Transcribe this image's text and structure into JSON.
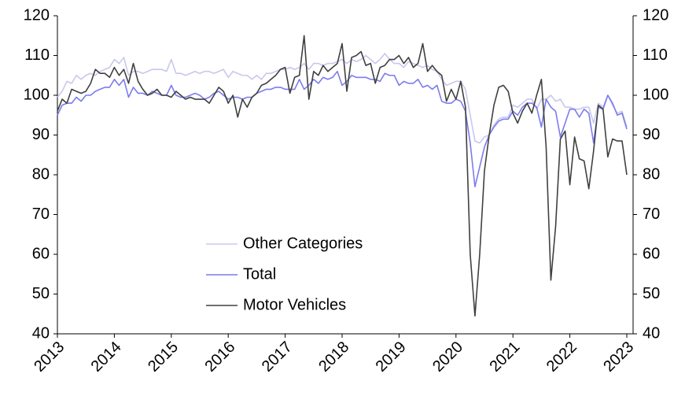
{
  "chart_data": {
    "type": "line",
    "categories": [
      "2013",
      null,
      null,
      null,
      null,
      null,
      null,
      null,
      null,
      null,
      null,
      null,
      "2014",
      null,
      null,
      null,
      null,
      null,
      null,
      null,
      null,
      null,
      null,
      null,
      "2015",
      null,
      null,
      null,
      null,
      null,
      null,
      null,
      null,
      null,
      null,
      null,
      "2016",
      null,
      null,
      null,
      null,
      null,
      null,
      null,
      null,
      null,
      null,
      null,
      "2017",
      null,
      null,
      null,
      null,
      null,
      null,
      null,
      null,
      null,
      null,
      null,
      "2018",
      null,
      null,
      null,
      null,
      null,
      null,
      null,
      null,
      null,
      null,
      null,
      "2019",
      null,
      null,
      null,
      null,
      null,
      null,
      null,
      null,
      null,
      null,
      null,
      "2020",
      null,
      null,
      null,
      null,
      null,
      null,
      null,
      null,
      null,
      null,
      null,
      "2021",
      null,
      null,
      null,
      null,
      null,
      null,
      null,
      null,
      null,
      null,
      null,
      "2022",
      null,
      null,
      null,
      null,
      null,
      null,
      null,
      null,
      null,
      null,
      null,
      "2023"
    ],
    "series": [
      {
        "name": "Other Categories",
        "color": "#c8c8ee",
        "values": [
          99.5,
          101,
          103.5,
          103,
          105,
          104,
          105,
          105.5,
          105,
          106,
          106.5,
          107,
          109,
          108,
          109.5,
          105,
          106,
          106,
          105.5,
          106,
          106.5,
          106.5,
          106.5,
          106,
          109,
          105.5,
          105.5,
          105,
          105.5,
          106,
          105.5,
          106,
          106,
          105.5,
          106,
          106.5,
          104.5,
          106,
          105.5,
          105,
          105,
          104,
          105,
          104,
          105.5,
          105.5,
          106,
          106.5,
          106.5,
          107,
          106.5,
          107,
          108,
          106.5,
          108,
          108,
          107.5,
          108,
          108,
          108.5,
          109,
          108,
          109,
          108.5,
          109,
          110,
          109,
          108,
          109,
          110.5,
          109,
          108,
          108,
          107,
          108.5,
          108,
          107.5,
          107,
          107.5,
          106.5,
          106,
          104,
          102.5,
          103,
          103.5,
          103.5,
          101.5,
          95,
          88.5,
          88,
          89.5,
          90,
          92.5,
          94,
          94.5,
          94.5,
          97.5,
          97,
          98,
          99,
          99,
          96.5,
          99,
          99,
          100,
          98.5,
          99,
          97,
          97,
          96.5,
          96.5,
          97,
          97,
          93,
          98,
          97,
          100,
          97.5,
          95.5,
          96,
          92
        ]
      },
      {
        "name": "Total",
        "color": "#7c7cee",
        "values": [
          95,
          97.5,
          98,
          98,
          99.5,
          98.5,
          100,
          100,
          101,
          101.5,
          102,
          102,
          104,
          102.5,
          104,
          99.5,
          102,
          100.5,
          100.5,
          100,
          101,
          100.5,
          100,
          100,
          102.5,
          100,
          99.5,
          99.5,
          100,
          100.5,
          100,
          99,
          99.5,
          100.5,
          101,
          100,
          99,
          99.5,
          99.5,
          99,
          99.5,
          99.5,
          100.5,
          101,
          101.5,
          101.5,
          102,
          102,
          101.5,
          101.5,
          101.5,
          104,
          101.5,
          102.5,
          104,
          103,
          104.5,
          104,
          104.5,
          106,
          102.5,
          103.5,
          105,
          104.5,
          104.5,
          104.5,
          104,
          104,
          103.5,
          105.5,
          105,
          105,
          102.5,
          103.5,
          103,
          103,
          104,
          102,
          102.5,
          101.5,
          102.5,
          98.5,
          98,
          98,
          99,
          98.5,
          96,
          88,
          77,
          82,
          87,
          90,
          92,
          93.5,
          94,
          94,
          96,
          95,
          97,
          98,
          98,
          97,
          92,
          99,
          97,
          96,
          89.5,
          93,
          96.5,
          96.5,
          94.5,
          96.5,
          95.5,
          88,
          97,
          96.5,
          100,
          98,
          95,
          95.5,
          91.5
        ]
      },
      {
        "name": "Motor Vehicles",
        "color": "#404040",
        "values": [
          96,
          99,
          98,
          101.5,
          101,
          100.5,
          101,
          103,
          106.5,
          105.5,
          105.5,
          104.5,
          107,
          105,
          106.5,
          103,
          108,
          103.5,
          101.5,
          100,
          100.5,
          101.5,
          100,
          100,
          99.5,
          101,
          100,
          99,
          99.5,
          99,
          99,
          99,
          98,
          100,
          102,
          101,
          98,
          100,
          94.5,
          99,
          97,
          99.5,
          100.5,
          102.5,
          103,
          104,
          105,
          106.5,
          107,
          100.5,
          104.5,
          105,
          115,
          99,
          106,
          105,
          107.5,
          106,
          107,
          108,
          113,
          101,
          109.5,
          110,
          111,
          107.5,
          108,
          103,
          107,
          107.5,
          109,
          109,
          110,
          108,
          109.5,
          107,
          108,
          113,
          106,
          107.5,
          106,
          105,
          98.5,
          101.5,
          99,
          103.5,
          97,
          60,
          44.5,
          60,
          81,
          90,
          97.5,
          102,
          102.5,
          101,
          95.5,
          93,
          96,
          98,
          95.5,
          100,
          104,
          87,
          53.5,
          67,
          89,
          91,
          77.5,
          89.5,
          84,
          83.5,
          76.5,
          86,
          97.5,
          96.5,
          84.5,
          89,
          88.5,
          88.5,
          80
        ]
      }
    ],
    "ylim": [
      40,
      120
    ],
    "yticks": [
      40,
      50,
      60,
      70,
      80,
      90,
      100,
      110,
      120
    ],
    "y2lim": [
      40,
      120
    ],
    "y2ticks": [
      40,
      50,
      60,
      70,
      80,
      90,
      100,
      110,
      120
    ],
    "legend": "center-left"
  }
}
